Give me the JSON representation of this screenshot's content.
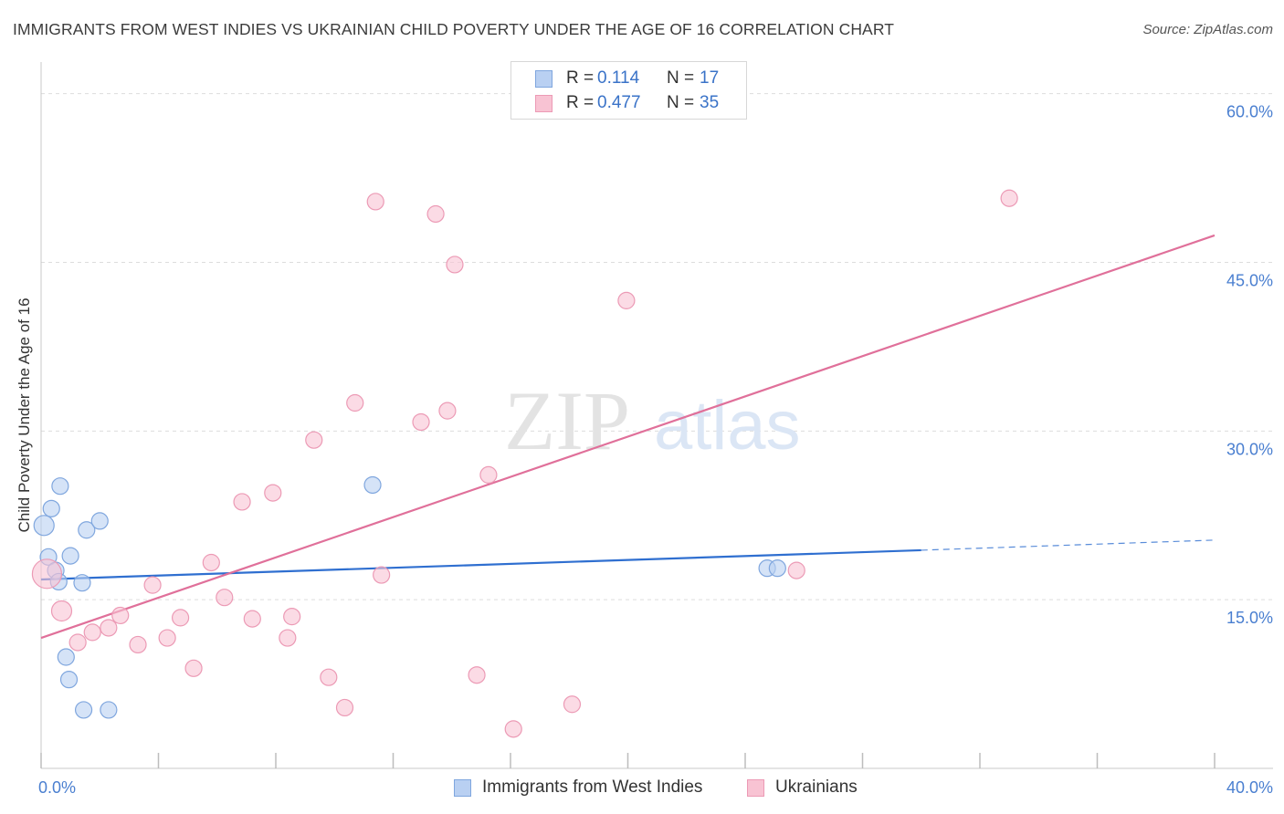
{
  "header": {
    "title": "IMMIGRANTS FROM WEST INDIES VS UKRAINIAN CHILD POVERTY UNDER THE AGE OF 16 CORRELATION CHART",
    "source": "Source: ZipAtlas.com"
  },
  "watermark": {
    "zip": "ZIP",
    "atlas": "atlas"
  },
  "legend": {
    "series1": {
      "r_label": "R =",
      "r_value": "0.114",
      "n_label": "N =",
      "n_value": "17"
    },
    "series2": {
      "r_label": "R =",
      "r_value": "0.477",
      "n_label": "N =",
      "n_value": "35"
    }
  },
  "colors": {
    "blue_fill": "#b9d0f2",
    "blue_stroke": "#7fa6de",
    "blue_line": "#2f6fd0",
    "pink_fill": "#f8c3d3",
    "pink_stroke": "#ec9ab5",
    "pink_line": "#e0709a",
    "grid": "#dddddd",
    "tick_text": "#4a7fd0"
  },
  "chart_data": {
    "type": "scatter",
    "title": "IMMIGRANTS FROM WEST INDIES VS UKRAINIAN CHILD POVERTY UNDER THE AGE OF 16 CORRELATION CHART",
    "xlabel": "",
    "ylabel": "Child Poverty Under the Age of 16",
    "xlim": [
      0,
      40
    ],
    "ylim": [
      0,
      62
    ],
    "x_tick_labels": [
      {
        "value": 0,
        "label": "0.0%"
      },
      {
        "value": 40,
        "label": "40.0%"
      }
    ],
    "x_minor_ticks": [
      0,
      4,
      8,
      12,
      16,
      20,
      24,
      28,
      32,
      36,
      40
    ],
    "y_tick_labels": [
      {
        "value": 15,
        "label": "15.0%"
      },
      {
        "value": 30,
        "label": "30.0%"
      },
      {
        "value": 45,
        "label": "45.0%"
      },
      {
        "value": 60,
        "label": "60.0%"
      }
    ],
    "grid": true,
    "legend_position": "top-center",
    "series": [
      {
        "name": "Immigrants from West Indies",
        "color": "blue",
        "points": [
          {
            "x": 0.1,
            "y": 21.6,
            "r": 11
          },
          {
            "x": 0.25,
            "y": 18.8,
            "r": 9
          },
          {
            "x": 0.35,
            "y": 23.1,
            "r": 9
          },
          {
            "x": 0.5,
            "y": 17.6,
            "r": 9
          },
          {
            "x": 0.6,
            "y": 16.6,
            "r": 9
          },
          {
            "x": 0.65,
            "y": 25.1,
            "r": 9
          },
          {
            "x": 1.0,
            "y": 18.9,
            "r": 9
          },
          {
            "x": 1.4,
            "y": 16.5,
            "r": 9
          },
          {
            "x": 1.55,
            "y": 21.2,
            "r": 9
          },
          {
            "x": 0.85,
            "y": 9.9,
            "r": 9
          },
          {
            "x": 0.95,
            "y": 7.9,
            "r": 9
          },
          {
            "x": 1.45,
            "y": 5.2,
            "r": 9
          },
          {
            "x": 2.0,
            "y": 22.0,
            "r": 9
          },
          {
            "x": 2.3,
            "y": 5.2,
            "r": 9
          },
          {
            "x": 11.3,
            "y": 25.2,
            "r": 9
          },
          {
            "x": 24.75,
            "y": 17.8,
            "r": 9
          },
          {
            "x": 25.1,
            "y": 17.8,
            "r": 9
          }
        ],
        "trendline": {
          "x1": 0,
          "y1": 16.8,
          "x2": 30,
          "y2": 19.4,
          "dashed_to_x": 40,
          "dashed_to_y": 20.3
        }
      },
      {
        "name": "Ukrainians",
        "color": "pink",
        "points": [
          {
            "x": 0.2,
            "y": 17.3,
            "r": 16
          },
          {
            "x": 0.7,
            "y": 14.0,
            "r": 11
          },
          {
            "x": 1.25,
            "y": 11.2,
            "r": 9
          },
          {
            "x": 1.75,
            "y": 12.1,
            "r": 9
          },
          {
            "x": 2.3,
            "y": 12.5,
            "r": 9
          },
          {
            "x": 2.7,
            "y": 13.6,
            "r": 9
          },
          {
            "x": 3.3,
            "y": 11.0,
            "r": 9
          },
          {
            "x": 3.8,
            "y": 16.3,
            "r": 9
          },
          {
            "x": 4.3,
            "y": 11.6,
            "r": 9
          },
          {
            "x": 4.75,
            "y": 13.4,
            "r": 9
          },
          {
            "x": 5.2,
            "y": 8.9,
            "r": 9
          },
          {
            "x": 5.8,
            "y": 18.3,
            "r": 9
          },
          {
            "x": 6.25,
            "y": 15.2,
            "r": 9
          },
          {
            "x": 6.85,
            "y": 23.7,
            "r": 9
          },
          {
            "x": 7.2,
            "y": 13.3,
            "r": 9
          },
          {
            "x": 7.9,
            "y": 24.5,
            "r": 9
          },
          {
            "x": 8.4,
            "y": 11.6,
            "r": 9
          },
          {
            "x": 8.55,
            "y": 13.5,
            "r": 9
          },
          {
            "x": 9.3,
            "y": 29.2,
            "r": 9
          },
          {
            "x": 9.8,
            "y": 8.1,
            "r": 9
          },
          {
            "x": 10.35,
            "y": 5.4,
            "r": 9
          },
          {
            "x": 10.7,
            "y": 32.5,
            "r": 9
          },
          {
            "x": 11.4,
            "y": 50.4,
            "r": 9
          },
          {
            "x": 11.6,
            "y": 17.2,
            "r": 9
          },
          {
            "x": 12.95,
            "y": 30.8,
            "r": 9
          },
          {
            "x": 13.45,
            "y": 49.3,
            "r": 9
          },
          {
            "x": 13.85,
            "y": 31.8,
            "r": 9
          },
          {
            "x": 14.1,
            "y": 44.8,
            "r": 9
          },
          {
            "x": 14.85,
            "y": 8.3,
            "r": 9
          },
          {
            "x": 15.25,
            "y": 26.1,
            "r": 9
          },
          {
            "x": 16.1,
            "y": 3.5,
            "r": 9
          },
          {
            "x": 18.1,
            "y": 5.7,
            "r": 9
          },
          {
            "x": 19.95,
            "y": 41.6,
            "r": 9
          },
          {
            "x": 25.75,
            "y": 17.6,
            "r": 9
          },
          {
            "x": 33.0,
            "y": 50.7,
            "r": 9
          }
        ],
        "trendline": {
          "x1": 0,
          "y1": 11.6,
          "x2": 40,
          "y2": 47.4
        }
      }
    ]
  },
  "bottom_legend": {
    "item1": "Immigrants from West Indies",
    "item2": "Ukrainians"
  }
}
